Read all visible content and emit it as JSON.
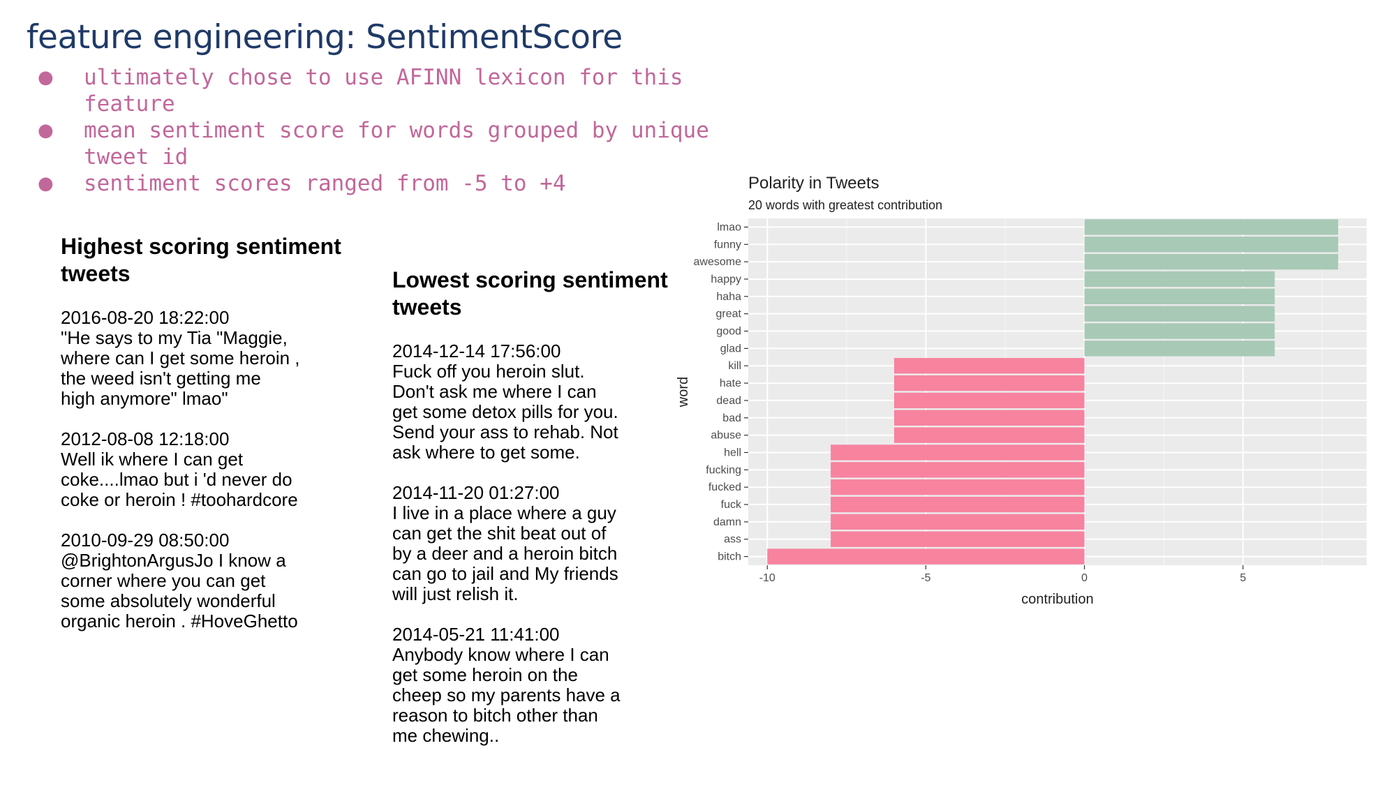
{
  "slide": {
    "title": "feature engineering: SentimentScore",
    "bullets": [
      "ultimately chose to use AFINN lexicon for this\nfeature",
      "mean sentiment score for words grouped by unique\ntweet id",
      "sentiment scores ranged from -5 to +4"
    ]
  },
  "highest": {
    "heading": "Highest scoring sentiment tweets",
    "tweets": [
      {
        "timestamp": "2016-08-20 18:22:00",
        "text": "\"He says to my Tia \"Maggie,\nwhere can I get some heroin ,\nthe weed isn't getting me\nhigh anymore\" lmao\""
      },
      {
        "timestamp": "2012-08-08 12:18:00",
        "text": "Well ik where I can get\ncoke....lmao but i 'd never do\ncoke or heroin ! #toohardcore"
      },
      {
        "timestamp": "2010-09-29 08:50:00",
        "text": "@BrightonArgusJo I know a\ncorner where you can get\nsome absolutely wonderful\norganic heroin . #HoveGhetto"
      }
    ]
  },
  "lowest": {
    "heading": "Lowest scoring sentiment tweets",
    "tweets": [
      {
        "timestamp": "2014-12-14 17:56:00",
        "text": "Fuck off you heroin slut.\nDon't ask me where I can\nget some detox pills for you.\nSend your ass to rehab. Not\nask where to get some."
      },
      {
        "timestamp": "2014-11-20 01:27:00",
        "text": "I live in a place where a guy\ncan get the shit beat out of\nby a deer and a heroin bitch\ncan go to jail and My friends\nwill just relish it."
      },
      {
        "timestamp": "2014-05-21 11:41:00",
        "text": "Anybody know where I can\nget some heroin on the\ncheep so my parents have a\nreason to bitch other than\nme chewing.."
      }
    ]
  },
  "chart_data": {
    "type": "bar",
    "orientation": "horizontal",
    "title": "Polarity in Tweets",
    "subtitle": "20 words with greatest contribution",
    "xlabel": "contribution",
    "ylabel": "word",
    "xlim": [
      -10.6,
      8.9
    ],
    "xticks": [
      -10,
      -5,
      0,
      5
    ],
    "grid": true,
    "colors": {
      "positive": "#a8c9b6",
      "negative": "#f7839f",
      "panel": "#ebebeb",
      "grid": "#ffffff"
    },
    "categories": [
      "lmao",
      "funny",
      "awesome",
      "happy",
      "haha",
      "great",
      "good",
      "glad",
      "kill",
      "hate",
      "dead",
      "bad",
      "abuse",
      "hell",
      "fucking",
      "fucked",
      "fuck",
      "damn",
      "ass",
      "bitch"
    ],
    "values": [
      8,
      8,
      8,
      6,
      6,
      6,
      6,
      6,
      -6,
      -6,
      -6,
      -6,
      -6,
      -8,
      -8,
      -8,
      -8,
      -8,
      -8,
      -10
    ]
  }
}
